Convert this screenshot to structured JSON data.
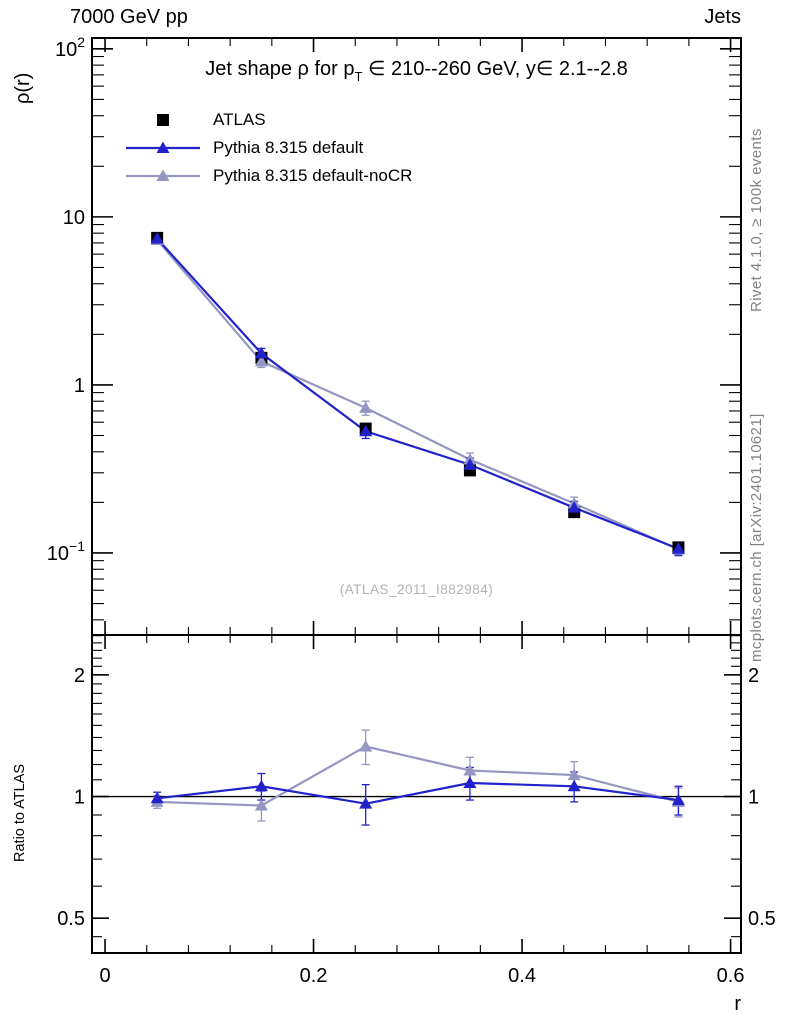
{
  "header": {
    "left": "7000 GeV pp",
    "right": "Jets"
  },
  "title": {
    "part1": "Jet shape ρ for p",
    "sub": "T",
    "part2": " ∈ 210--260 GeV, y∈ 2.1--2.8"
  },
  "watermark": "(ATLAS_2011_I882984)",
  "side_notes": {
    "top": "Rivet 4.1.0, ≥ 100k events",
    "bottom": "mcplots.cern.ch [arXiv:2401.10621]"
  },
  "axes": {
    "y_label": "ρ(r)",
    "ratio_label": "Ratio to ATLAS",
    "x_label": "r",
    "main_y_ticks": [
      {
        "base": "10",
        "exp": "2",
        "value": 100
      },
      {
        "base": "10",
        "exp": "",
        "value": 10
      },
      {
        "base": "1",
        "exp": "",
        "value": 1
      },
      {
        "base": "10",
        "exp": "−1",
        "value": 0.1
      }
    ],
    "ratio_y_ticks": [
      {
        "label": "2",
        "value": 2
      },
      {
        "label": "1",
        "value": 1
      },
      {
        "label": "0.5",
        "value": 0.5
      }
    ],
    "x_ticks": [
      {
        "label": "0",
        "value": 0
      },
      {
        "label": "0.2",
        "value": 0.2
      },
      {
        "label": "0.4",
        "value": 0.4
      },
      {
        "label": "0.6",
        "value": 0.6
      }
    ]
  },
  "legend": [
    {
      "label": "ATLAS",
      "series": 0
    },
    {
      "label": "Pythia 8.315 default",
      "series": 2
    },
    {
      "label": "Pythia 8.315 default-noCR",
      "series": 1
    }
  ],
  "colors": {
    "atlas": "#000000",
    "pythia_default": "#2222cc",
    "pythia_default_nocr": "#9696c3",
    "reference_line": "#000000",
    "watermark": "#b2b2b2",
    "side_text": "#828282"
  },
  "chart_data": [
    {
      "type": "line",
      "title": "Jet shape ρ for p_T ∈ 210--260 GeV, y∈ 2.1--2.8",
      "xlabel": "r",
      "ylabel": "ρ(r)",
      "xscale": "linear",
      "yscale": "log",
      "xlim": [
        -0.0125,
        0.61
      ],
      "ylim": [
        0.0325,
        116
      ],
      "grid": false,
      "legend_position": "top-left",
      "x": [
        0.05,
        0.15,
        0.25,
        0.35,
        0.45,
        0.55
      ],
      "series": [
        {
          "name": "ATLAS",
          "marker": "square",
          "color": "#000000",
          "line": false,
          "values": [
            7.5,
            1.45,
            0.55,
            0.31,
            0.175,
            0.108
          ],
          "errors": [
            0.3,
            0.09,
            0.035,
            0.02,
            0.012,
            0.007
          ]
        },
        {
          "name": "Pythia 8.315 default-noCR",
          "marker": "triangle",
          "color": "#9696c3",
          "line": true,
          "values": [
            7.28,
            1.38,
            0.73,
            0.36,
            0.197,
            0.105
          ],
          "errors": [
            0.25,
            0.11,
            0.07,
            0.033,
            0.018,
            0.009
          ]
        },
        {
          "name": "Pythia 8.315 default",
          "marker": "triangle",
          "color": "#2222cc",
          "line": true,
          "values": [
            7.42,
            1.54,
            0.53,
            0.335,
            0.186,
            0.106
          ],
          "errors": [
            0.25,
            0.11,
            0.05,
            0.032,
            0.017,
            0.009
          ]
        }
      ]
    },
    {
      "type": "line",
      "title": "",
      "xlabel": "r",
      "ylabel": "Ratio to ATLAS",
      "xscale": "linear",
      "yscale": "log",
      "xlim": [
        -0.0125,
        0.61
      ],
      "ylim": [
        0.41,
        2.51
      ],
      "grid": false,
      "reference_line": 1,
      "x": [
        0.05,
        0.15,
        0.25,
        0.35,
        0.45,
        0.55
      ],
      "series": [
        {
          "name": "Pythia 8.315 default-noCR",
          "marker": "triangle",
          "color": "#9696c3",
          "line": true,
          "values": [
            0.97,
            0.95,
            1.33,
            1.16,
            1.13,
            0.97
          ],
          "errors": [
            0.035,
            0.08,
            0.13,
            0.09,
            0.09,
            0.08
          ]
        },
        {
          "name": "Pythia 8.315 default",
          "marker": "triangle",
          "color": "#2222cc",
          "line": true,
          "values": [
            0.99,
            1.06,
            0.96,
            1.08,
            1.06,
            0.98
          ],
          "errors": [
            0.035,
            0.08,
            0.11,
            0.1,
            0.09,
            0.08
          ]
        }
      ]
    }
  ]
}
